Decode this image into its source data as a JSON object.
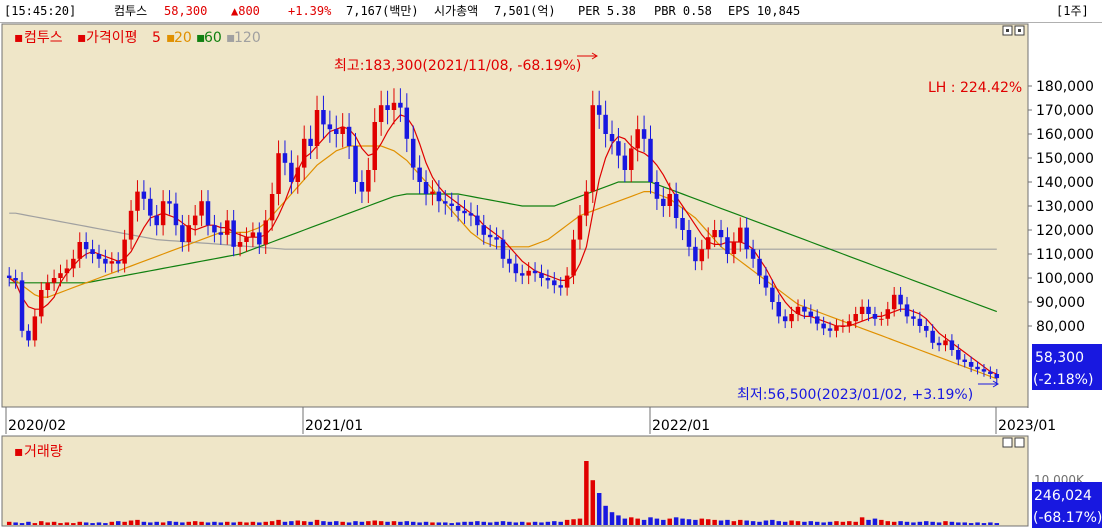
{
  "header": {
    "time": "[15:45:20]",
    "name": "컴투스",
    "price": "58,300",
    "change": "▲800",
    "change_pct": "+1.39%",
    "volume": "7,167(백만)",
    "mktcap_label": "시가총액",
    "mktcap": "7,501(억)",
    "per": "PER 5.38",
    "pbr": "PBR 0.58",
    "eps": "EPS 10,845",
    "period": "[1주]"
  },
  "legend": {
    "name": "컴투스",
    "ma_label": "가격이평",
    "ma": [
      "5",
      "20",
      "60",
      "120"
    ]
  },
  "annotations": {
    "high": "최고:183,300(2021/11/08, -68.19%)",
    "low": "최저:56,500(2023/01/02, +3.19%)",
    "lh": "LH : 224.42%",
    "current_price": "58,300",
    "current_pct": "(-2.18%)",
    "volume_label": "거래량",
    "current_volume": "246,024",
    "volume_pct": "(-68.17%)",
    "vol_axis_tick": "10,000K"
  },
  "colors": {
    "up": "#e00000",
    "down": "#1818e0",
    "ma5": "#e00000",
    "ma20": "#e09000",
    "ma60": "#108010",
    "ma120": "#a0a0a0",
    "plot_bg": "#efe6c8"
  },
  "chart_data": {
    "type": "candlestick",
    "interval": "weekly",
    "y_ticks": [
      "180,000",
      "170,000",
      "160,000",
      "150,000",
      "140,000",
      "130,000",
      "120,000",
      "110,000",
      "100,000",
      "90,000",
      "80,000"
    ],
    "x_ticks": [
      "2020/02",
      "2021/01",
      "2022/01",
      "2023/01"
    ],
    "ylim": [
      50000,
      195000
    ],
    "x_count": 155,
    "close": [
      100000,
      99000,
      78000,
      74000,
      84000,
      95000,
      98000,
      100000,
      102000,
      104000,
      108000,
      115000,
      112000,
      110000,
      108000,
      106000,
      107000,
      106000,
      116000,
      128000,
      136000,
      133000,
      126000,
      122000,
      132000,
      131000,
      122000,
      115000,
      122000,
      126000,
      132000,
      122000,
      119000,
      118000,
      124000,
      113000,
      115000,
      117000,
      119000,
      114000,
      124000,
      135000,
      152000,
      148000,
      140000,
      146000,
      158000,
      155000,
      170000,
      164000,
      162000,
      160000,
      163000,
      155000,
      140000,
      136000,
      145000,
      165000,
      172000,
      170000,
      173000,
      171000,
      158000,
      146000,
      140000,
      135000,
      136000,
      132000,
      131000,
      130000,
      128000,
      127000,
      126000,
      122000,
      118000,
      117000,
      116000,
      108000,
      106000,
      102000,
      101000,
      103000,
      102000,
      100000,
      99000,
      97000,
      96000,
      101000,
      116000,
      126000,
      136000,
      172000,
      168000,
      160000,
      157000,
      151000,
      145000,
      154000,
      162000,
      158000,
      140000,
      133000,
      130000,
      135000,
      125000,
      120000,
      113000,
      107000,
      112000,
      117000,
      120000,
      117000,
      110000,
      115000,
      121000,
      112000,
      108000,
      101000,
      96000,
      90000,
      84000,
      82000,
      85000,
      88000,
      86000,
      84000,
      81000,
      79000,
      78000,
      80000,
      80000,
      82000,
      85000,
      88000,
      85000,
      83000,
      83000,
      87000,
      93000,
      89000,
      84000,
      83000,
      80000,
      78000,
      73000,
      72000,
      74000,
      70000,
      66000,
      65000,
      63000,
      62000,
      61000,
      60000,
      58300
    ],
    "ma": {
      "5": [
        100000,
        98000,
        92000,
        88000,
        87000,
        87000,
        89000,
        92000,
        98000,
        102000,
        105000,
        108000,
        110000,
        111000,
        110000,
        109000,
        108000,
        107000,
        108000,
        111000,
        116000,
        121000,
        125000,
        126000,
        127000,
        126000,
        125000,
        123000,
        121000,
        120000,
        121000,
        122000,
        122000,
        121000,
        121000,
        119000,
        118000,
        117000,
        117000,
        117000,
        118000,
        121000,
        126000,
        132000,
        139000,
        145000,
        150000,
        152000,
        155000,
        158000,
        161000,
        162000,
        163000,
        162000,
        159000,
        154000,
        151000,
        152000,
        156000,
        161000,
        165000,
        168000,
        167000,
        163000,
        156000,
        148000,
        142000,
        138000,
        135000,
        133000,
        131000,
        129000,
        127000,
        125000,
        122000,
        120000,
        118000,
        116000,
        113000,
        110000,
        107000,
        105000,
        103000,
        102000,
        101000,
        100000,
        99000,
        99000,
        101000,
        106000,
        113000,
        127000,
        141000,
        150000,
        156000,
        159000,
        158000,
        155000,
        153000,
        152000,
        150000,
        147000,
        143000,
        138000,
        134000,
        130000,
        126000,
        122000,
        118000,
        115000,
        114000,
        114000,
        115000,
        115000,
        115000,
        114000,
        112000,
        108000,
        104000,
        99000,
        94000,
        90000,
        87000,
        85000,
        84000,
        84000,
        83000,
        82000,
        81000,
        80000,
        80000,
        80000,
        81000,
        82000,
        83000,
        84000,
        84000,
        85000,
        86000,
        87000,
        87000,
        86000,
        85000,
        83000,
        80000,
        77000,
        75000,
        73000,
        71000,
        69000,
        67000,
        65000,
        63000,
        61000,
        60000
      ],
      "20": [
        100000,
        99000,
        97000,
        95000,
        93000,
        92000,
        92000,
        93000,
        94000,
        95000,
        96000,
        97000,
        98000,
        99000,
        100000,
        101000,
        102000,
        103000,
        104000,
        105000,
        106000,
        107000,
        108000,
        109000,
        110000,
        111000,
        112000,
        113000,
        114000,
        115000,
        116000,
        117000,
        118000,
        119000,
        119000,
        119000,
        119000,
        119000,
        120000,
        121000,
        123000,
        126000,
        129000,
        132000,
        135000,
        138000,
        141000,
        144000,
        147000,
        149000,
        151000,
        153000,
        154000,
        155000,
        155000,
        155000,
        155000,
        155000,
        155000,
        154000,
        153000,
        151000,
        149000,
        146000,
        143000,
        140000,
        137000,
        134000,
        131000,
        128000,
        125000,
        122000,
        119000,
        117000,
        115000,
        114000,
        113000,
        113000,
        113000,
        113000,
        113000,
        113000,
        114000,
        115000,
        116000,
        118000,
        120000,
        122000,
        124000,
        126000,
        127000,
        128000,
        129000,
        130000,
        131000,
        132000,
        133000,
        134000,
        135000,
        136000,
        136000,
        135000,
        134000,
        133000,
        131000,
        129000,
        127000,
        125000,
        122000,
        119000,
        116000,
        113000,
        111000,
        109000,
        107000,
        105000,
        103000,
        101000,
        99000,
        97000,
        95000,
        93000,
        91000,
        89000,
        88000,
        87000,
        86000,
        85000,
        84000,
        83000,
        82000,
        81000,
        80000,
        79000,
        78000,
        77000,
        76000,
        75000,
        74000,
        73000,
        72000,
        71000,
        70000,
        69000,
        68000,
        67000,
        66000,
        65000,
        64000,
        63000,
        62000,
        61000,
        60000,
        59000,
        58000
      ],
      "60": [
        98000,
        98000,
        98000,
        98000,
        98000,
        98000,
        98000,
        98000,
        98000,
        98000,
        98000,
        98000,
        98000,
        98500,
        99000,
        99500,
        100000,
        100500,
        101000,
        101500,
        102000,
        102500,
        103000,
        103500,
        104000,
        104500,
        105000,
        105500,
        106000,
        106500,
        107000,
        107500,
        108000,
        108500,
        109000,
        109500,
        110000,
        111000,
        112000,
        113000,
        114000,
        115000,
        116000,
        117000,
        118000,
        119000,
        120000,
        121000,
        122000,
        123000,
        124000,
        125000,
        126000,
        127000,
        128000,
        129000,
        130000,
        131000,
        132000,
        133000,
        134000,
        134500,
        135000,
        135000,
        135000,
        135000,
        135000,
        135000,
        135000,
        135000,
        135000,
        134500,
        134000,
        133500,
        133000,
        132500,
        132000,
        131500,
        131000,
        130500,
        130000,
        130000,
        130000,
        130000,
        130000,
        130000,
        131000,
        132000,
        133000,
        134000,
        135000,
        136000,
        137000,
        138000,
        139000,
        140000,
        140000,
        140000,
        140000,
        140000,
        140000,
        139000,
        138000,
        137000,
        136000,
        135000,
        134000,
        133000,
        132000,
        131000,
        130000,
        129000,
        128000,
        127000,
        126000,
        125000,
        124000,
        123000,
        122000,
        121000,
        120000,
        119000,
        118000,
        117000,
        116000,
        115000,
        114000,
        113000,
        112000,
        111000,
        110000,
        109000,
        108000,
        107000,
        106000,
        105000,
        104000,
        103000,
        102000,
        101000,
        100000,
        99000,
        98000,
        97000,
        96000,
        95000,
        94000,
        93000,
        92000,
        91000,
        90000,
        89000,
        88000,
        87000,
        86000
      ],
      "120": [
        127000,
        127000,
        126500,
        126000,
        125500,
        125000,
        124500,
        124000,
        123500,
        123000,
        122500,
        122000,
        121500,
        121000,
        120500,
        120000,
        119500,
        119000,
        118500,
        118000,
        117500,
        117000,
        116500,
        116000,
        115800,
        115600,
        115400,
        115200,
        115000,
        114800,
        114600,
        114400,
        114200,
        114000,
        113800,
        113600,
        113400,
        113200,
        113000,
        112800,
        112600,
        112400,
        112200,
        112000,
        112000,
        112000,
        112000,
        112000,
        112000,
        112000,
        112000,
        112000,
        112000,
        112000,
        112000,
        112000,
        112000,
        112000,
        112000,
        112000,
        112000,
        112000,
        112000,
        112000,
        112000,
        112000,
        112000,
        112000,
        112000,
        112000,
        112000,
        112000,
        112000,
        112000,
        112000,
        112000,
        112000,
        112000,
        112000,
        112000,
        112000,
        112000,
        112000,
        112000,
        112000,
        112000,
        112000,
        112000,
        112000,
        112000,
        112000,
        112000,
        112000,
        112000,
        112000,
        112000,
        112000,
        112000,
        112000,
        112000,
        112000,
        112000,
        112000,
        112000,
        112000,
        112000,
        112000,
        112000,
        112000,
        112000,
        112000,
        112000,
        112000,
        112000,
        112000,
        112000,
        112000,
        112000,
        112000,
        112000,
        112000,
        112000,
        112000,
        112000,
        112000,
        112000,
        112000,
        112000,
        112000,
        112000,
        112000,
        112000,
        112000,
        112000,
        112000,
        112000,
        112000,
        112000,
        112000,
        112000,
        112000,
        112000,
        112000,
        112000,
        112000,
        112000,
        112000,
        112000,
        112000,
        112000,
        112000,
        112000,
        112000,
        112000,
        112000
      ]
    },
    "volume_rel": [
      0.05,
      0.04,
      0.03,
      0.05,
      0.03,
      0.06,
      0.04,
      0.05,
      0.03,
      0.04,
      0.03,
      0.05,
      0.04,
      0.03,
      0.04,
      0.03,
      0.05,
      0.06,
      0.05,
      0.07,
      0.08,
      0.05,
      0.04,
      0.05,
      0.04,
      0.06,
      0.05,
      0.04,
      0.05,
      0.06,
      0.05,
      0.04,
      0.05,
      0.04,
      0.05,
      0.04,
      0.05,
      0.04,
      0.05,
      0.04,
      0.05,
      0.06,
      0.08,
      0.05,
      0.06,
      0.07,
      0.06,
      0.05,
      0.08,
      0.06,
      0.05,
      0.06,
      0.05,
      0.04,
      0.06,
      0.05,
      0.06,
      0.07,
      0.06,
      0.05,
      0.06,
      0.05,
      0.06,
      0.05,
      0.04,
      0.05,
      0.04,
      0.04,
      0.04,
      0.03,
      0.04,
      0.05,
      0.05,
      0.06,
      0.05,
      0.04,
      0.05,
      0.06,
      0.05,
      0.04,
      0.05,
      0.04,
      0.05,
      0.04,
      0.05,
      0.06,
      0.05,
      0.08,
      0.09,
      0.1,
      1.0,
      0.7,
      0.5,
      0.3,
      0.2,
      0.15,
      0.1,
      0.12,
      0.1,
      0.08,
      0.12,
      0.1,
      0.08,
      0.1,
      0.12,
      0.1,
      0.09,
      0.08,
      0.1,
      0.09,
      0.08,
      0.07,
      0.08,
      0.06,
      0.08,
      0.07,
      0.06,
      0.05,
      0.07,
      0.08,
      0.06,
      0.05,
      0.07,
      0.06,
      0.05,
      0.06,
      0.05,
      0.04,
      0.05,
      0.06,
      0.05,
      0.06,
      0.05,
      0.12,
      0.08,
      0.1,
      0.08,
      0.06,
      0.05,
      0.06,
      0.05,
      0.04,
      0.05,
      0.06,
      0.05,
      0.04,
      0.06,
      0.05,
      0.04,
      0.04,
      0.03,
      0.04,
      0.03,
      0.04,
      0.03
    ]
  }
}
